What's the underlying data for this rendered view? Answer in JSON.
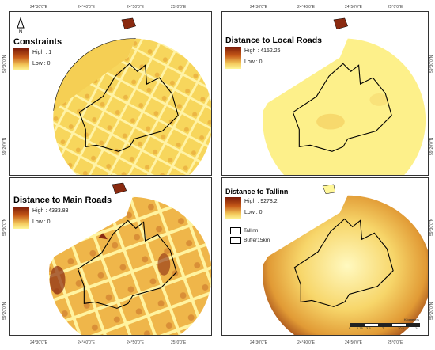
{
  "panels": [
    {
      "title": "Constraints",
      "high": "High : 1",
      "low": "Low : 0"
    },
    {
      "title": "Distance to Local Roads",
      "high": "High : 4152.26",
      "low": "Low : 0"
    },
    {
      "title": "Distance to Main Roads",
      "high": "High : 4333.83",
      "low": "Low : 0"
    },
    {
      "title": "Distance to Tallinn",
      "high": "High : 9278.2",
      "low": "Low : 0"
    }
  ],
  "north_label": "N",
  "lon_ticks": [
    "24°30'0\"E",
    "24°40'0\"E",
    "24°50'0\"E",
    "25°0'0\"E"
  ],
  "lat_ticks": [
    "59°30'0\"N",
    "59°20'0\"N"
  ],
  "boundary_legend": [
    "Tallinn",
    "Buffer15km"
  ],
  "scale": {
    "unit": "Kilometers",
    "ticks": [
      "0",
      "1.75",
      "3.5",
      "7",
      "10.5",
      "14"
    ]
  },
  "colors": {
    "dark": "#7a1a08",
    "mid": "#d27a24",
    "light": "#fff79a",
    "outline": "#000000"
  }
}
